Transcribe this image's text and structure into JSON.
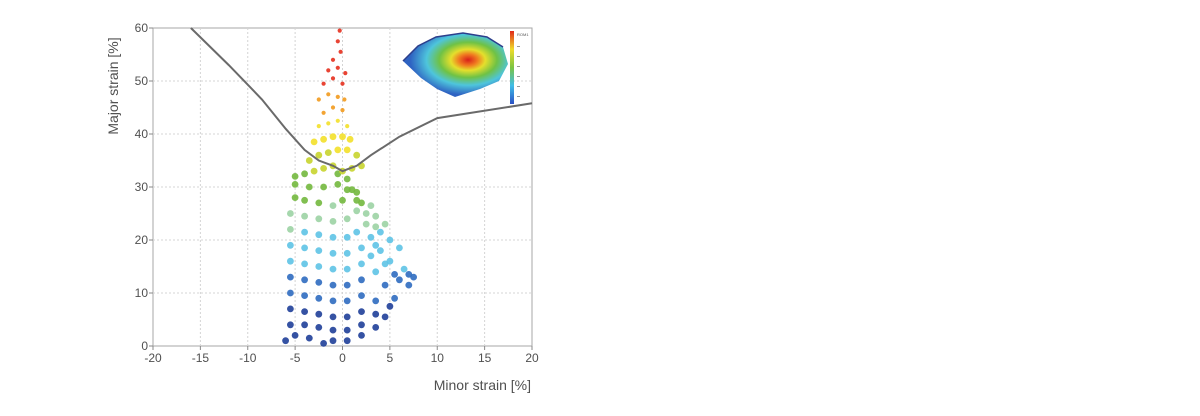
{
  "chart_data": {
    "type": "scatter",
    "title": "",
    "xlabel": "Minor strain [%]",
    "ylabel": "Major strain [%]",
    "xlim": [
      -20,
      20
    ],
    "ylim": [
      0,
      60
    ],
    "x_ticks": [
      "-20",
      "-15",
      "-10",
      "-5",
      "0",
      "5",
      "10",
      "15",
      "20"
    ],
    "y_ticks": [
      "0",
      "10",
      "20",
      "30",
      "40",
      "50",
      "60"
    ],
    "grid": true,
    "legend": "none",
    "forming_limit_curve": {
      "x": [
        -16.0,
        -12.0,
        -8.5,
        -6.0,
        -4.0,
        -2.5,
        -1.0,
        0.0,
        1.5,
        3.0,
        6.0,
        10.0,
        20.0
      ],
      "y": [
        60.0,
        53.0,
        46.5,
        41.0,
        37.0,
        35.0,
        34.0,
        33.0,
        34.0,
        36.0,
        39.5,
        43.0,
        45.8
      ]
    },
    "point_cloud": {
      "color_scale": [
        "#1f3f99",
        "#2f6cc0",
        "#5ec3e6",
        "#9cd3a4",
        "#73b83e",
        "#c8d42e",
        "#f3e02a",
        "#f29a1d",
        "#e6301e"
      ],
      "points": [
        [
          -6.0,
          1.0
        ],
        [
          -5.0,
          2.0
        ],
        [
          -3.5,
          1.5
        ],
        [
          -2.0,
          0.5
        ],
        [
          -1.0,
          1.0
        ],
        [
          0.5,
          1.0
        ],
        [
          2.0,
          2.0
        ],
        [
          3.5,
          3.5
        ],
        [
          4.5,
          5.5
        ],
        [
          5.0,
          7.5
        ],
        [
          -5.5,
          4.0
        ],
        [
          -4.0,
          4.0
        ],
        [
          -2.5,
          3.5
        ],
        [
          -1.0,
          3.0
        ],
        [
          0.5,
          3.0
        ],
        [
          2.0,
          4.0
        ],
        [
          3.5,
          6.0
        ],
        [
          5.5,
          9.0
        ],
        [
          7.0,
          11.5
        ],
        [
          7.5,
          13.0
        ],
        [
          -5.5,
          7.0
        ],
        [
          -4.0,
          6.5
        ],
        [
          -2.5,
          6.0
        ],
        [
          -1.0,
          5.5
        ],
        [
          0.5,
          5.5
        ],
        [
          2.0,
          6.5
        ],
        [
          3.5,
          8.5
        ],
        [
          6.0,
          12.5
        ],
        [
          7.0,
          13.5
        ],
        [
          6.5,
          14.5
        ],
        [
          -5.5,
          10.0
        ],
        [
          -4.0,
          9.5
        ],
        [
          -2.5,
          9.0
        ],
        [
          -1.0,
          8.5
        ],
        [
          0.5,
          8.5
        ],
        [
          2.0,
          9.5
        ],
        [
          4.5,
          11.5
        ],
        [
          5.5,
          13.5
        ],
        [
          5.0,
          16.0
        ],
        [
          6.0,
          18.5
        ],
        [
          -5.5,
          13.0
        ],
        [
          -4.0,
          12.5
        ],
        [
          -2.5,
          12.0
        ],
        [
          -1.0,
          11.5
        ],
        [
          0.5,
          11.5
        ],
        [
          2.0,
          12.5
        ],
        [
          3.5,
          14.0
        ],
        [
          4.5,
          15.5
        ],
        [
          4.0,
          18.0
        ],
        [
          5.0,
          20.0
        ],
        [
          -5.5,
          16.0
        ],
        [
          -4.0,
          15.5
        ],
        [
          -2.5,
          15.0
        ],
        [
          -1.0,
          14.5
        ],
        [
          0.5,
          14.5
        ],
        [
          2.0,
          15.5
        ],
        [
          3.0,
          17.0
        ],
        [
          3.5,
          19.0
        ],
        [
          4.0,
          21.5
        ],
        [
          4.5,
          23.0
        ],
        [
          -5.5,
          19.0
        ],
        [
          -4.0,
          18.5
        ],
        [
          -2.5,
          18.0
        ],
        [
          -1.0,
          17.5
        ],
        [
          0.5,
          17.5
        ],
        [
          2.0,
          18.5
        ],
        [
          3.0,
          20.5
        ],
        [
          3.5,
          22.5
        ],
        [
          3.5,
          24.5
        ],
        [
          3.0,
          26.5
        ],
        [
          -5.5,
          22.0
        ],
        [
          -4.0,
          21.5
        ],
        [
          -2.5,
          21.0
        ],
        [
          -1.0,
          20.5
        ],
        [
          0.5,
          20.5
        ],
        [
          1.5,
          21.5
        ],
        [
          2.5,
          23.0
        ],
        [
          2.5,
          25.0
        ],
        [
          2.0,
          27.0
        ],
        [
          1.5,
          29.0
        ],
        [
          -5.5,
          25.0
        ],
        [
          -4.0,
          24.5
        ],
        [
          -2.5,
          24.0
        ],
        [
          -1.0,
          23.5
        ],
        [
          0.5,
          24.0
        ],
        [
          1.5,
          25.5
        ],
        [
          1.5,
          27.5
        ],
        [
          1.0,
          29.5
        ],
        [
          0.5,
          31.5
        ],
        [
          -0.5,
          32.5
        ],
        [
          -5.0,
          28.0
        ],
        [
          -4.0,
          27.5
        ],
        [
          -2.5,
          27.0
        ],
        [
          -1.0,
          26.5
        ],
        [
          0.0,
          27.5
        ],
        [
          0.5,
          29.5
        ],
        [
          -0.5,
          30.5
        ],
        [
          -2.0,
          30.0
        ],
        [
          -3.5,
          30.0
        ],
        [
          -5.0,
          30.5
        ],
        [
          -5.0,
          32.0
        ],
        [
          -4.0,
          32.5
        ],
        [
          -3.0,
          33.0
        ],
        [
          -2.0,
          33.5
        ],
        [
          -1.0,
          34.0
        ],
        [
          0.0,
          33.0
        ],
        [
          1.0,
          33.5
        ],
        [
          2.0,
          34.0
        ],
        [
          -3.5,
          35.0
        ],
        [
          -2.5,
          36.0
        ],
        [
          -1.5,
          36.5
        ],
        [
          -0.5,
          37.0
        ],
        [
          0.5,
          37.0
        ],
        [
          1.5,
          36.0
        ],
        [
          -3.0,
          38.5
        ],
        [
          -2.0,
          39.0
        ],
        [
          -1.0,
          39.5
        ],
        [
          0.0,
          39.5
        ],
        [
          0.8,
          39.0
        ],
        [
          -2.5,
          41.5
        ],
        [
          -1.5,
          42.0
        ],
        [
          -0.5,
          42.5
        ],
        [
          0.5,
          41.5
        ],
        [
          -2.0,
          44.0
        ],
        [
          -1.0,
          45.0
        ],
        [
          0.0,
          44.5
        ],
        [
          -2.5,
          46.5
        ],
        [
          -1.5,
          47.5
        ],
        [
          -0.5,
          47.0
        ],
        [
          0.2,
          46.5
        ],
        [
          -2.0,
          49.5
        ],
        [
          -1.0,
          50.5
        ],
        [
          0.0,
          49.5
        ],
        [
          -1.5,
          52.0
        ],
        [
          -0.5,
          52.5
        ],
        [
          0.3,
          51.5
        ],
        [
          -1.0,
          54.0
        ],
        [
          -0.2,
          55.5
        ],
        [
          -0.5,
          57.5
        ],
        [
          -0.3,
          59.5
        ]
      ]
    },
    "inset": {
      "legend_header": "ROM1",
      "type": "strain-distribution-map"
    }
  }
}
